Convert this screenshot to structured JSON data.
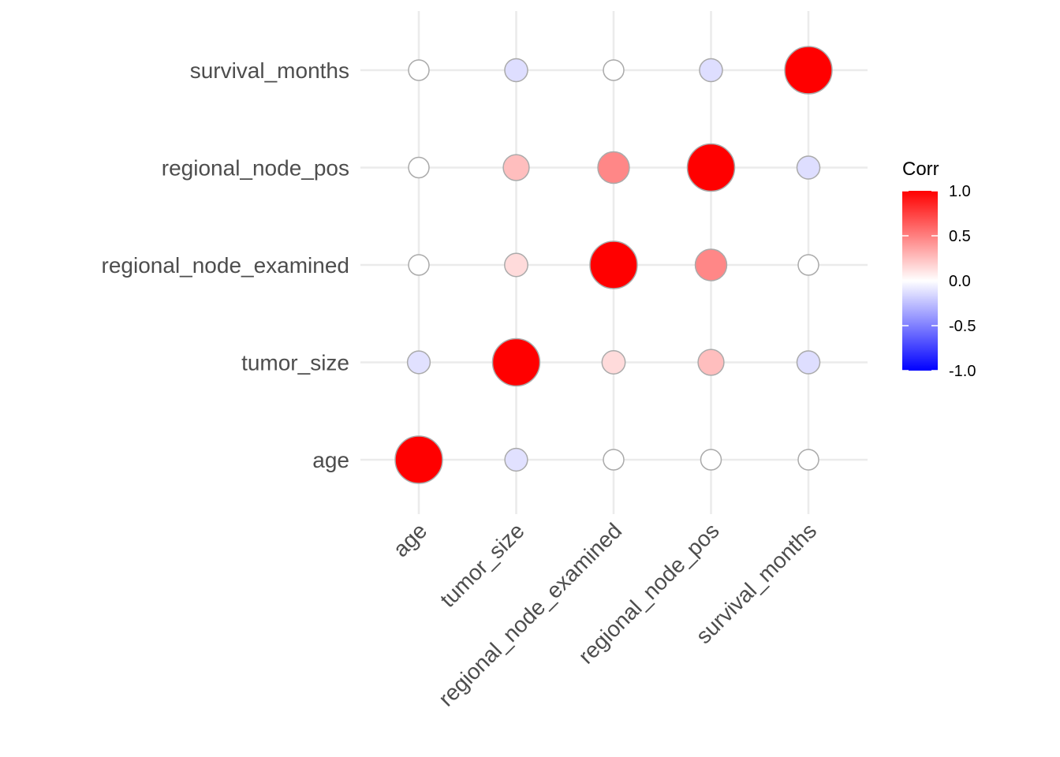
{
  "chart_data": {
    "type": "scatter",
    "subtype": "correlation-circle-matrix",
    "title": "",
    "xlabel": "",
    "ylabel": "",
    "variables": [
      "age",
      "tumor_size",
      "regional_node_examined",
      "regional_node_pos",
      "survival_months"
    ],
    "x_tick_labels": [
      "age",
      "tumor_size",
      "regional_node_examined",
      "regional_node_pos",
      "survival_months"
    ],
    "y_tick_labels": [
      "age",
      "tumor_size",
      "regional_node_examined",
      "regional_node_pos",
      "survival_months"
    ],
    "matrix": [
      [
        1.0,
        -0.08,
        0.0,
        0.0,
        0.0
      ],
      [
        -0.08,
        1.0,
        0.1,
        0.2,
        -0.09
      ],
      [
        0.0,
        0.1,
        1.0,
        0.41,
        0.0
      ],
      [
        0.0,
        0.2,
        0.41,
        1.0,
        -0.09
      ],
      [
        0.0,
        -0.09,
        0.0,
        -0.09,
        1.0
      ]
    ],
    "legend": {
      "title": "Corr",
      "position": "right",
      "range": [
        -1.0,
        1.0
      ],
      "ticks": [
        "1.0",
        "0.5",
        "0.0",
        "-0.5",
        "-1.0"
      ],
      "tick_values": [
        1.0,
        0.5,
        0.0,
        -0.5,
        -1.0
      ],
      "low_color": "#0000ff",
      "mid_color": "#ffffff",
      "high_color": "#ff0000"
    },
    "grid": true,
    "marker_outline_color": "#aaaaaa"
  }
}
